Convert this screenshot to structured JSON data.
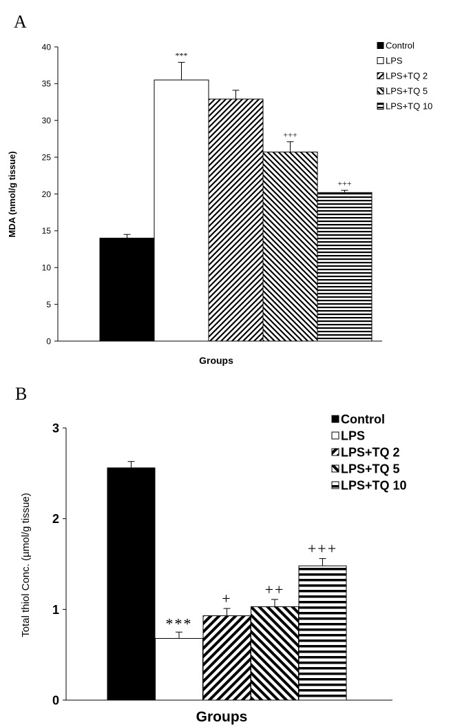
{
  "colors": {
    "ink": "#000000",
    "paper": "#ffffff"
  },
  "chart_data": [
    {
      "panel": "A",
      "type": "bar",
      "categories": [
        "Control",
        "LPS",
        "LPS+TQ 2",
        "LPS+TQ 5",
        "LPS+TQ 10"
      ],
      "series": [
        {
          "values": [
            14.0,
            35.5,
            32.9,
            25.7,
            20.2
          ],
          "errors": [
            0.5,
            2.4,
            1.2,
            1.4,
            0.3
          ]
        }
      ],
      "annotations": [
        "",
        "***",
        "",
        "+++",
        "+++"
      ],
      "patterns": [
        "solid",
        "open",
        "diag-up",
        "diag-down",
        "horizontal"
      ],
      "xlabel": "Groups",
      "ylabel": "MDA (nmol/g tissue)",
      "ylim": [
        0,
        40
      ],
      "yticks": [
        0,
        5,
        10,
        15,
        20,
        25,
        30,
        35,
        40
      ],
      "legend": [
        "Control",
        "LPS",
        "LPS+TQ 2",
        "LPS+TQ 5",
        "LPS+TQ 10"
      ],
      "legend_position": "top-right",
      "grid": false
    },
    {
      "panel": "B",
      "type": "bar",
      "categories": [
        "Control",
        "LPS",
        "LPS+TQ 2",
        "LPS+TQ 5",
        "LPS+TQ 10"
      ],
      "series": [
        {
          "values": [
            2.56,
            0.68,
            0.93,
            1.03,
            1.48
          ],
          "errors": [
            0.07,
            0.07,
            0.08,
            0.08,
            0.08
          ]
        }
      ],
      "annotations": [
        "",
        "***",
        "+",
        "++",
        "+++"
      ],
      "patterns": [
        "solid",
        "open",
        "diag-up",
        "diag-down",
        "horizontal"
      ],
      "xlabel": "Groups",
      "ylabel": "Total thiol Conc. (µmol/g tissue)",
      "ylim": [
        0,
        3
      ],
      "yticks": [
        0,
        1,
        2,
        3
      ],
      "legend": [
        "Control",
        "LPS",
        "LPS+TQ 2",
        "LPS+TQ 5",
        "LPS+TQ 10"
      ],
      "legend_position": "top-right",
      "grid": false
    }
  ]
}
